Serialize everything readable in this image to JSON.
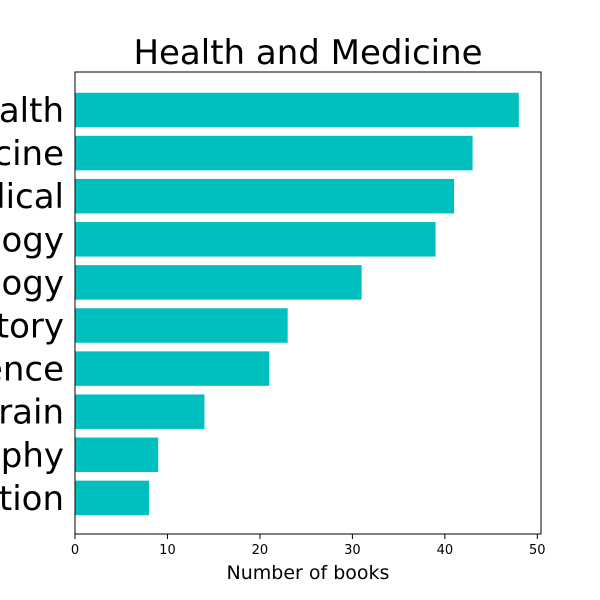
{
  "chart_data": {
    "type": "bar",
    "orientation": "horizontal",
    "title": "Health and Medicine",
    "xlabel": "Number of books",
    "ylabel": "",
    "categories": [
      "alth",
      "cine",
      "lical",
      "ogy",
      "ogy",
      "tory",
      "ence",
      "rain",
      "phy",
      "tion"
    ],
    "values": [
      48,
      43,
      41,
      39,
      31,
      23,
      21,
      14,
      9,
      8
    ],
    "xlim": [
      0,
      50.4
    ],
    "xticks": [
      0,
      10,
      20,
      30,
      40,
      50
    ],
    "bar_color": "#00bfbf",
    "grid": false,
    "legend": "none"
  }
}
